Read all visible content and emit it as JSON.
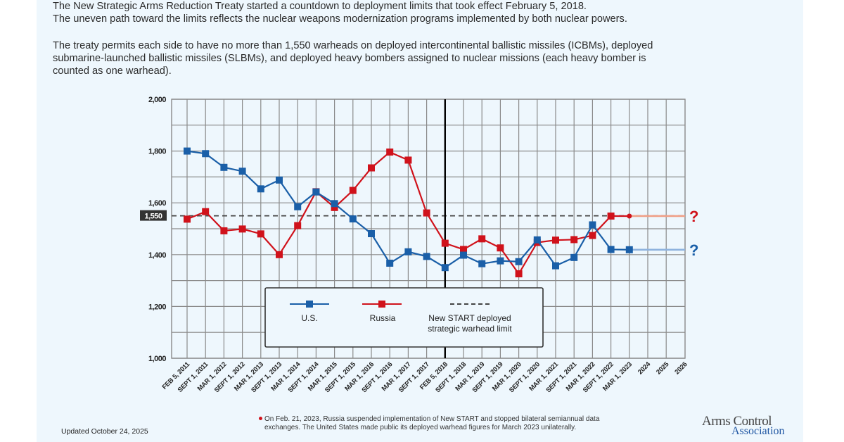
{
  "intro": {
    "paragraph1_line1": "The New Strategic Arms Reduction Treaty started a countdown to deployment limits that took effect February 5, 2018.",
    "paragraph1_line2": "The uneven path toward the limits reflects the nuclear weapons modernization programs implemented by both nuclear powers.",
    "paragraph2_line1": "The treaty permits each side to have no more than 1,550 warheads on deployed intercontinental ballistic missiles (ICBMs), deployed",
    "paragraph2_line2": "submarine-launched ballistic missiles (SLBMs), and deployed heavy bombers assigned to nuclear missions (each heavy bomber is",
    "paragraph2_line3": "counted as one warhead)."
  },
  "chart_data": {
    "type": "line",
    "title": "",
    "xlabel": "",
    "ylabel": "",
    "ylim": [
      1000,
      2000
    ],
    "yticks": [
      1000,
      1200,
      1400,
      1600,
      1800,
      2000
    ],
    "ytick_labels": [
      "1,000",
      "1,200",
      "1,400",
      "1,600",
      "1,800",
      "2,000"
    ],
    "grid": true,
    "categories": [
      "FEB 5, 2011",
      "SEPT 1, 2011",
      "MAR 1, 2012",
      "SEPT 1, 2012",
      "MAR 1, 2013",
      "SEPT 1, 2013",
      "MAR 1, 2014",
      "SEPT 1, 2014",
      "MAR 1, 2015",
      "SEPT 1, 2015",
      "MAR 1, 2016",
      "SEPT 1, 2016",
      "MAR 1, 2017",
      "SEPT 1, 2017",
      "FEB 5, 2018",
      "SEPT 1, 2018",
      "MAR 1, 2019",
      "SEPT 1, 2019",
      "MAR 1, 2020",
      "SEPT 1, 2020",
      "MAR 1, 2021",
      "SEPT 1, 2021",
      "MAR 1, 2022",
      "SEPT 1, 2022",
      "MAR 1, 2023",
      "2024",
      "2025",
      "2026"
    ],
    "series": [
      {
        "name": "U.S.",
        "color": "#1a5fa8",
        "projection_color": "#8fb3de",
        "values": [
          1800,
          1790,
          1737,
          1722,
          1654,
          1688,
          1585,
          1642,
          1597,
          1538,
          1481,
          1367,
          1411,
          1393,
          1350,
          1398,
          1365,
          1376,
          1373,
          1457,
          1357,
          1389,
          1515,
          1420,
          1419
        ],
        "projection_label": "?"
      },
      {
        "name": "Russia",
        "color": "#d0121b",
        "projection_color": "#f0a088",
        "values": [
          1537,
          1566,
          1492,
          1499,
          1480,
          1400,
          1512,
          1643,
          1582,
          1648,
          1735,
          1796,
          1765,
          1561,
          1444,
          1420,
          1461,
          1426,
          1326,
          1447,
          1456,
          1458,
          1474,
          1549,
          1549
        ],
        "estimated_last_point": true,
        "projection_label": "?"
      }
    ],
    "reference_line": {
      "name": "New START deployed strategic warhead limit",
      "value": 1550,
      "label": "1,550",
      "color": "#444444"
    },
    "event_line": {
      "category": "FEB 5, 2018",
      "color": "#000000"
    },
    "legend": {
      "placement": "bottom-center-inside",
      "entries": [
        {
          "label": "U.S.",
          "color": "#1a5fa8",
          "style": "line-marker"
        },
        {
          "label": "Russia",
          "color": "#d0121b",
          "style": "line-marker"
        },
        {
          "label_line1": "New START deployed",
          "label_line2": "strategic warhead limit",
          "color": "#444444",
          "style": "dashed"
        }
      ]
    }
  },
  "footer": {
    "updated": "Updated October 24, 2025",
    "footnote_line1": "On Feb. 21, 2023, Russia suspended implementation of New START and stopped bilateral semiannual data",
    "footnote_line2": "exchanges. The United States made public its deployed warhead figures for March 2023 unilaterally.",
    "logo_line1": "Arms Control",
    "logo_line2": "Association"
  }
}
